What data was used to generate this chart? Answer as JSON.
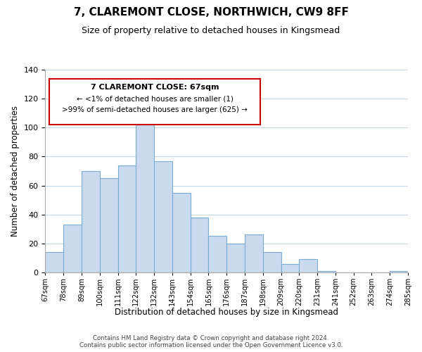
{
  "title": "7, CLAREMONT CLOSE, NORTHWICH, CW9 8FF",
  "subtitle": "Size of property relative to detached houses in Kingsmead",
  "xlabel": "Distribution of detached houses by size in Kingsmead",
  "ylabel": "Number of detached properties",
  "bar_color": "#c9d9ee",
  "bar_edge_color": "#7aadd4",
  "background_color": "#ffffff",
  "grid_color": "#c8d8e8",
  "bin_labels": [
    "67sqm",
    "78sqm",
    "89sqm",
    "100sqm",
    "111sqm",
    "122sqm",
    "132sqm",
    "143sqm",
    "154sqm",
    "165sqm",
    "176sqm",
    "187sqm",
    "198sqm",
    "209sqm",
    "220sqm",
    "231sqm",
    "241sqm",
    "252sqm",
    "263sqm",
    "274sqm",
    "285sqm"
  ],
  "bar_heights": [
    14,
    33,
    70,
    65,
    74,
    102,
    77,
    55,
    38,
    25,
    20,
    26,
    14,
    6,
    9,
    1,
    0,
    0,
    0,
    1
  ],
  "ylim": [
    0,
    140
  ],
  "yticks": [
    0,
    20,
    40,
    60,
    80,
    100,
    120,
    140
  ],
  "annotation_title": "7 CLAREMONT CLOSE: 67sqm",
  "annotation_line1": "← <1% of detached houses are smaller (1)",
  "annotation_line2": ">99% of semi-detached houses are larger (625) →",
  "annotation_box_color": "#ffffff",
  "annotation_box_edge": "#cc0000",
  "footer_line1": "Contains HM Land Registry data © Crown copyright and database right 2024.",
  "footer_line2": "Contains public sector information licensed under the Open Government Licence v3.0."
}
